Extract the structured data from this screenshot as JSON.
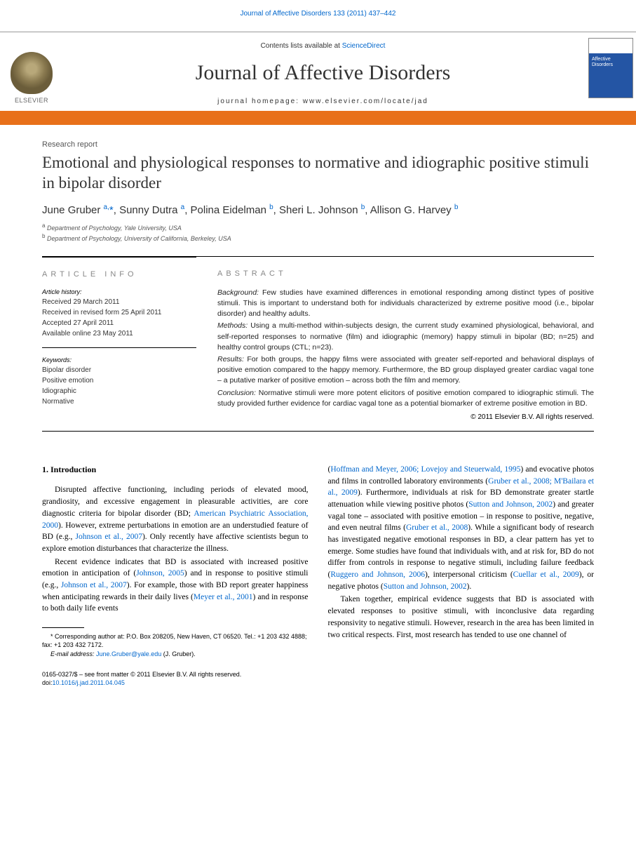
{
  "header": {
    "citation": "Journal of Affective Disorders 133 (2011) 437–442",
    "contents_prefix": "Contents lists available at ",
    "contents_link": "ScienceDirect",
    "journal_name": "Journal of Affective Disorders",
    "homepage_prefix": "journal homepage: ",
    "homepage_url": "www.elsevier.com/locate/jad",
    "publisher_label": "ELSEVIER"
  },
  "article": {
    "type": "Research report",
    "title": "Emotional and physiological responses to normative and idiographic positive stimuli in bipolar disorder",
    "authors_html": "June Gruber <sup>a,</sup><span class='star'>*</span>, Sunny Dutra <sup>a</sup>, Polina Eidelman <sup>b</sup>, Sheri L. Johnson <sup>b</sup>, Allison G. Harvey <sup>b</sup>",
    "affiliations": [
      {
        "sup": "a",
        "text": "Department of Psychology, Yale University, USA"
      },
      {
        "sup": "b",
        "text": "Department of Psychology, University of California, Berkeley, USA"
      }
    ]
  },
  "info": {
    "label": "ARTICLE INFO",
    "history_label": "Article history:",
    "history": [
      "Received 29 March 2011",
      "Received in revised form 25 April 2011",
      "Accepted 27 April 2011",
      "Available online 23 May 2011"
    ],
    "keywords_label": "Keywords:",
    "keywords": [
      "Bipolar disorder",
      "Positive emotion",
      "Idiographic",
      "Normative"
    ]
  },
  "abstract": {
    "label": "ABSTRACT",
    "background": "Few studies have examined differences in emotional responding among distinct types of positive stimuli. This is important to understand both for individuals characterized by extreme positive mood (i.e., bipolar disorder) and healthy adults.",
    "methods": "Using a multi-method within-subjects design, the current study examined physiological, behavioral, and self-reported responses to normative (film) and idiographic (memory) happy stimuli in bipolar (BD; n=25) and healthy control groups (CTL; n=23).",
    "results": "For both groups, the happy films were associated with greater self-reported and behavioral displays of positive emotion compared to the happy memory. Furthermore, the BD group displayed greater cardiac vagal tone – a putative marker of positive emotion – across both the film and memory.",
    "conclusion": "Normative stimuli were more potent elicitors of positive emotion compared to idiographic stimuli. The study provided further evidence for cardiac vagal tone as a potential biomarker of extreme positive emotion in BD.",
    "copyright": "© 2011 Elsevier B.V. All rights reserved."
  },
  "body": {
    "heading": "1. Introduction",
    "left": [
      "Disrupted affective functioning, including periods of elevated mood, grandiosity, and excessive engagement in pleasurable activities, are core diagnostic criteria for bipolar disorder (BD; <a href='#'>American Psychiatric Association, 2000</a>). However, extreme perturbations in emotion are an understudied feature of BD (e.g., <a href='#'>Johnson et al., 2007</a>). Only recently have affective scientists begun to explore emotion disturbances that characterize the illness.",
      "Recent evidence indicates that BD is associated with increased positive emotion in anticipation of (<a href='#'>Johnson, 2005</a>) and in response to positive stimuli (e.g., <a href='#'>Johnson et al., 2007</a>). For example, those with BD report greater happiness when anticipating rewards in their daily lives (<a href='#'>Meyer et al., 2001</a>) and in response to both daily life events"
    ],
    "right": [
      "(<a href='#'>Hoffman and Meyer, 2006; Lovejoy and Steuerwald, 1995</a>) and evocative photos and films in controlled laboratory environments (<a href='#'>Gruber et al., 2008; M'Bailara et al., 2009</a>). Furthermore, individuals at risk for BD demonstrate greater startle attenuation while viewing positive photos (<a href='#'>Sutton and Johnson, 2002</a>) and greater vagal tone – associated with positive emotion – in response to positive, negative, and even neutral films (<a href='#'>Gruber et al., 2008</a>). While a significant body of research has investigated negative emotional responses in BD, a clear pattern has yet to emerge. Some studies have found that individuals with, and at risk for, BD do not differ from controls in response to negative stimuli, including failure feedback (<a href='#'>Ruggero and Johnson, 2006</a>), interpersonal criticism (<a href='#'>Cuellar et al., 2009</a>), or negative photos (<a href='#'>Sutton and Johnson, 2002</a>).",
      "Taken together, empirical evidence suggests that BD is associated with elevated responses to positive stimuli, with inconclusive data regarding responsivity to negative stimuli. However, research in the area has been limited in two critical respects. First, most research has tended to use one channel of"
    ]
  },
  "footnote": {
    "corr": "* Corresponding author at: P.O. Box 208205, New Haven, CT 06520. Tel.: +1 203 432 4888; fax: +1 203 432 7172.",
    "email_label": "E-mail address: ",
    "email": "June.Gruber@yale.edu",
    "email_suffix": " (J. Gruber)."
  },
  "footer": {
    "line1": "0165-0327/$ – see front matter © 2011 Elsevier B.V. All rights reserved.",
    "doi_label": "doi:",
    "doi": "10.1016/j.jad.2011.04.045"
  },
  "colors": {
    "link": "#0066cc",
    "orange_bar": "#e8701a",
    "text": "#000000",
    "gray_label": "#888888"
  }
}
